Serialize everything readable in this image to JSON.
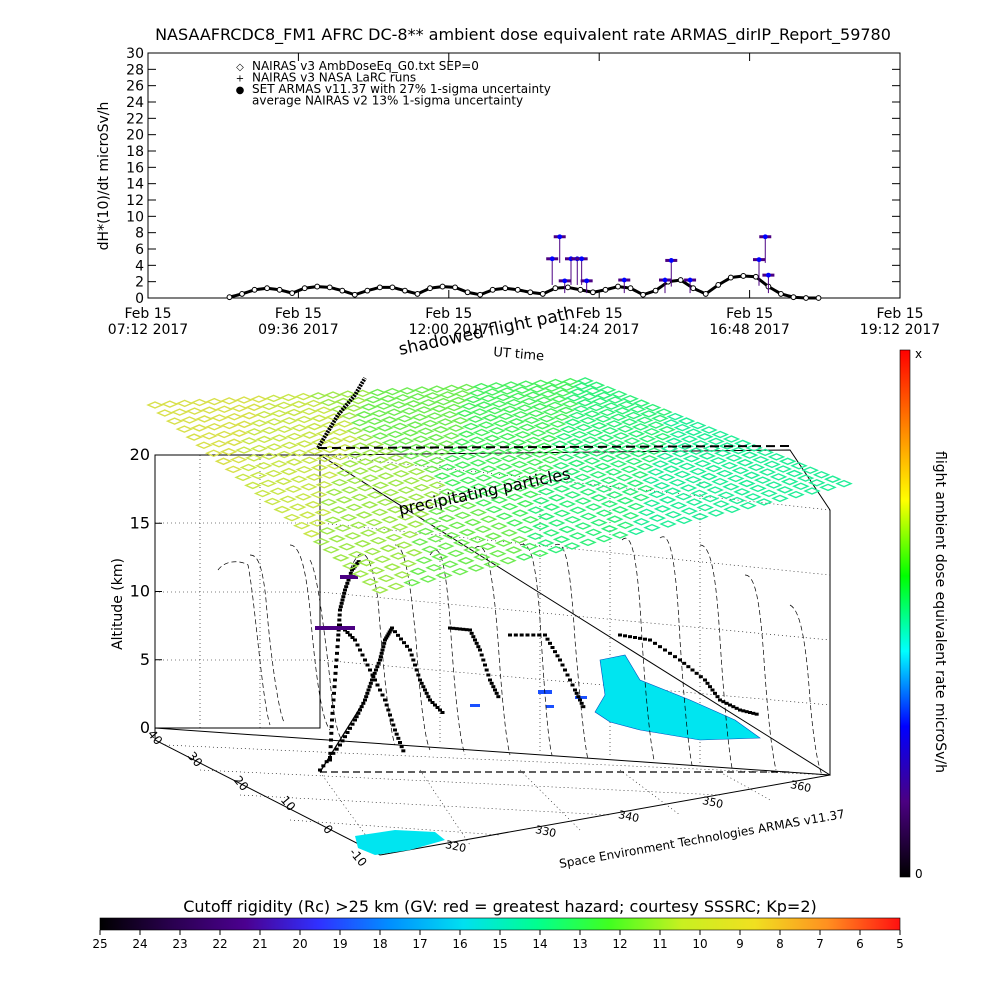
{
  "chart_data": [
    {
      "type": "scatter",
      "title": "NASAAFRCDC8_FM1 AFRC DC-8** ambient dose equivalent rate ARMAS_dirIP_Report_59780",
      "ylabel": "dH*(10)/dt microSv/h",
      "xlabel": "UT time",
      "ylim": [
        0,
        30
      ],
      "yticks": [
        "0",
        "2",
        "4",
        "6",
        "8",
        "10",
        "12",
        "14",
        "16",
        "18",
        "20",
        "22",
        "24",
        "26",
        "28",
        "30"
      ],
      "xticks": [
        {
          "date": "Feb 15",
          "time": "07:12 2017"
        },
        {
          "date": "Feb 15",
          "time": "09:36 2017"
        },
        {
          "date": "Feb 15",
          "time": "12:00 2017"
        },
        {
          "date": "Feb 15",
          "time": "14:24 2017"
        },
        {
          "date": "Feb 15",
          "time": "16:48 2017"
        },
        {
          "date": "Feb 15",
          "time": "19:12 2017"
        }
      ],
      "legend_position": "top-left",
      "legend": [
        {
          "symbol": "◇",
          "label": "NAIRAS v3 AmbDoseEq_G0.txt SEP=0"
        },
        {
          "symbol": "+",
          "label": "NAIRAS v3 NASA LaRC runs"
        },
        {
          "symbol": "●",
          "label": "SET ARMAS v11.37 with 27% 1-sigma uncertainty"
        },
        {
          "symbol": "",
          "label": "average NAIRAS v2 13% 1-sigma uncertainty"
        }
      ],
      "nairas_series": {
        "time_hours": [
          8.5,
          8.7,
          8.9,
          9.1,
          9.3,
          9.5,
          9.7,
          9.9,
          10.1,
          10.3,
          10.5,
          10.7,
          10.9,
          11.1,
          11.3,
          11.5,
          11.7,
          11.9,
          12.1,
          12.3,
          12.5,
          12.7,
          12.9,
          13.1,
          13.3,
          13.5,
          13.7,
          13.9,
          14.1,
          14.3,
          14.5,
          14.7,
          14.9,
          15.1,
          15.3,
          15.5,
          15.7,
          15.9,
          16.1,
          16.3,
          16.5,
          16.7,
          16.9,
          17.1,
          17.3,
          17.5,
          17.7,
          17.9
        ],
        "dose": [
          0.1,
          0.5,
          1.0,
          1.2,
          1.0,
          0.6,
          1.2,
          1.4,
          1.3,
          0.9,
          0.4,
          0.9,
          1.3,
          1.3,
          0.9,
          0.5,
          1.2,
          1.4,
          1.3,
          0.7,
          0.4,
          1.0,
          1.2,
          1.0,
          0.7,
          0.5,
          1.2,
          1.3,
          1.0,
          0.7,
          1.0,
          1.4,
          1.2,
          0.4,
          0.9,
          2.0,
          2.2,
          1.2,
          0.5,
          1.6,
          2.5,
          2.7,
          2.6,
          1.4,
          0.5,
          0.1,
          0.0,
          0.0
        ]
      },
      "armas_points": [
        {
          "time_hours": 13.77,
          "dose": 7.5
        },
        {
          "time_hours": 13.65,
          "dose": 4.8
        },
        {
          "time_hours": 13.95,
          "dose": 4.8
        },
        {
          "time_hours": 14.05,
          "dose": 4.8
        },
        {
          "time_hours": 14.12,
          "dose": 4.8
        },
        {
          "time_hours": 13.85,
          "dose": 2.1
        },
        {
          "time_hours": 14.2,
          "dose": 2.1
        },
        {
          "time_hours": 14.8,
          "dose": 2.2
        },
        {
          "time_hours": 15.55,
          "dose": 4.6
        },
        {
          "time_hours": 15.45,
          "dose": 2.2
        },
        {
          "time_hours": 15.85,
          "dose": 2.2
        },
        {
          "time_hours": 17.05,
          "dose": 7.5
        },
        {
          "time_hours": 16.95,
          "dose": 4.7
        },
        {
          "time_hours": 17.1,
          "dose": 2.8
        }
      ]
    },
    {
      "type": "scatter",
      "title": "",
      "zlabel": "Altitude (km)",
      "zticks": [
        "0",
        "5",
        "10",
        "15",
        "20"
      ],
      "y_axis_ticks": [
        "-10",
        "0",
        "10",
        "20",
        "30",
        "40"
      ],
      "x_axis_ticks": [
        "320",
        "330",
        "340",
        "350",
        "360"
      ],
      "credit": "Space Environment Technologies ARMAS v11.37",
      "annotations": [
        "shadowed flight path",
        "UT time",
        "precipitating particles"
      ],
      "colorbar": {
        "label": "flight ambient dose equivalent rate microSv/h",
        "max_label": "x",
        "min_label": "0",
        "colors": [
          "#000000",
          "#4b0082",
          "#0000ff",
          "#00ffff",
          "#00ff00",
          "#ffff00",
          "#ff8000",
          "#ff0000"
        ]
      }
    },
    {
      "type": "heatmap",
      "title": "Cutoff rigidity (Rc) >25 km (GV: red = greatest hazard; courtesy SSSRC; Kp=2)",
      "tick_labels": [
        "25",
        "24",
        "23",
        "22",
        "21",
        "20",
        "19",
        "18",
        "17",
        "16",
        "15",
        "14",
        "13",
        "12",
        "11",
        "10",
        "9",
        "8",
        "7",
        "6",
        "5"
      ],
      "colors": [
        "#000000",
        "#2a0050",
        "#4b0090",
        "#3030ff",
        "#0090ff",
        "#00e0f0",
        "#00ff90",
        "#40ff20",
        "#c8f020",
        "#f0e020",
        "#ff9020",
        "#ff1010"
      ]
    }
  ],
  "colors": {
    "nairas": "#000000",
    "armas": "#0000ff",
    "armas_bar": "#4b0082",
    "grid": "#000000"
  }
}
